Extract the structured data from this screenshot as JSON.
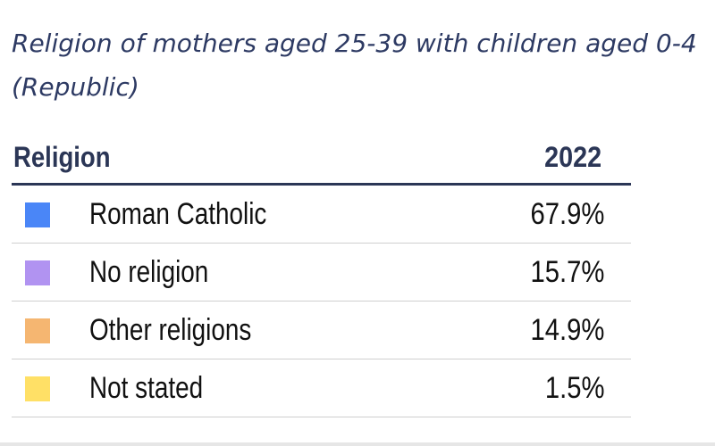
{
  "chart_data": {
    "type": "table",
    "title": "Religion of mothers aged 25-39 with children aged 0-4 (Republic)",
    "columns": [
      "Religion",
      "2022"
    ],
    "rows": [
      {
        "label": "Roman Catholic",
        "value": 67.9,
        "display": "67.9%",
        "color": "#4a86f7"
      },
      {
        "label": "No religion",
        "value": 15.7,
        "display": "15.7%",
        "color": "#b193f1"
      },
      {
        "label": "Other religions",
        "value": 14.9,
        "display": "14.9%",
        "color": "#f5b671"
      },
      {
        "label": "Not stated",
        "value": 1.5,
        "display": "1.5%",
        "color": "#ffe066"
      }
    ],
    "unit": "%"
  }
}
